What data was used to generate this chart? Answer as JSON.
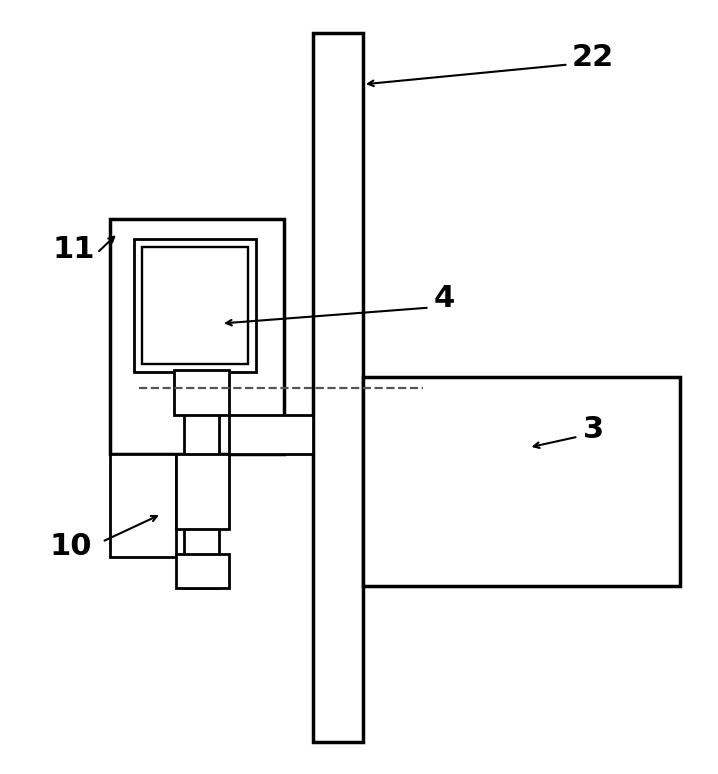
{
  "fig_width": 7.18,
  "fig_height": 7.74,
  "dpi": 100,
  "bg_color": "#ffffff",
  "line_color": "#000000",
  "lw": 2.0
}
